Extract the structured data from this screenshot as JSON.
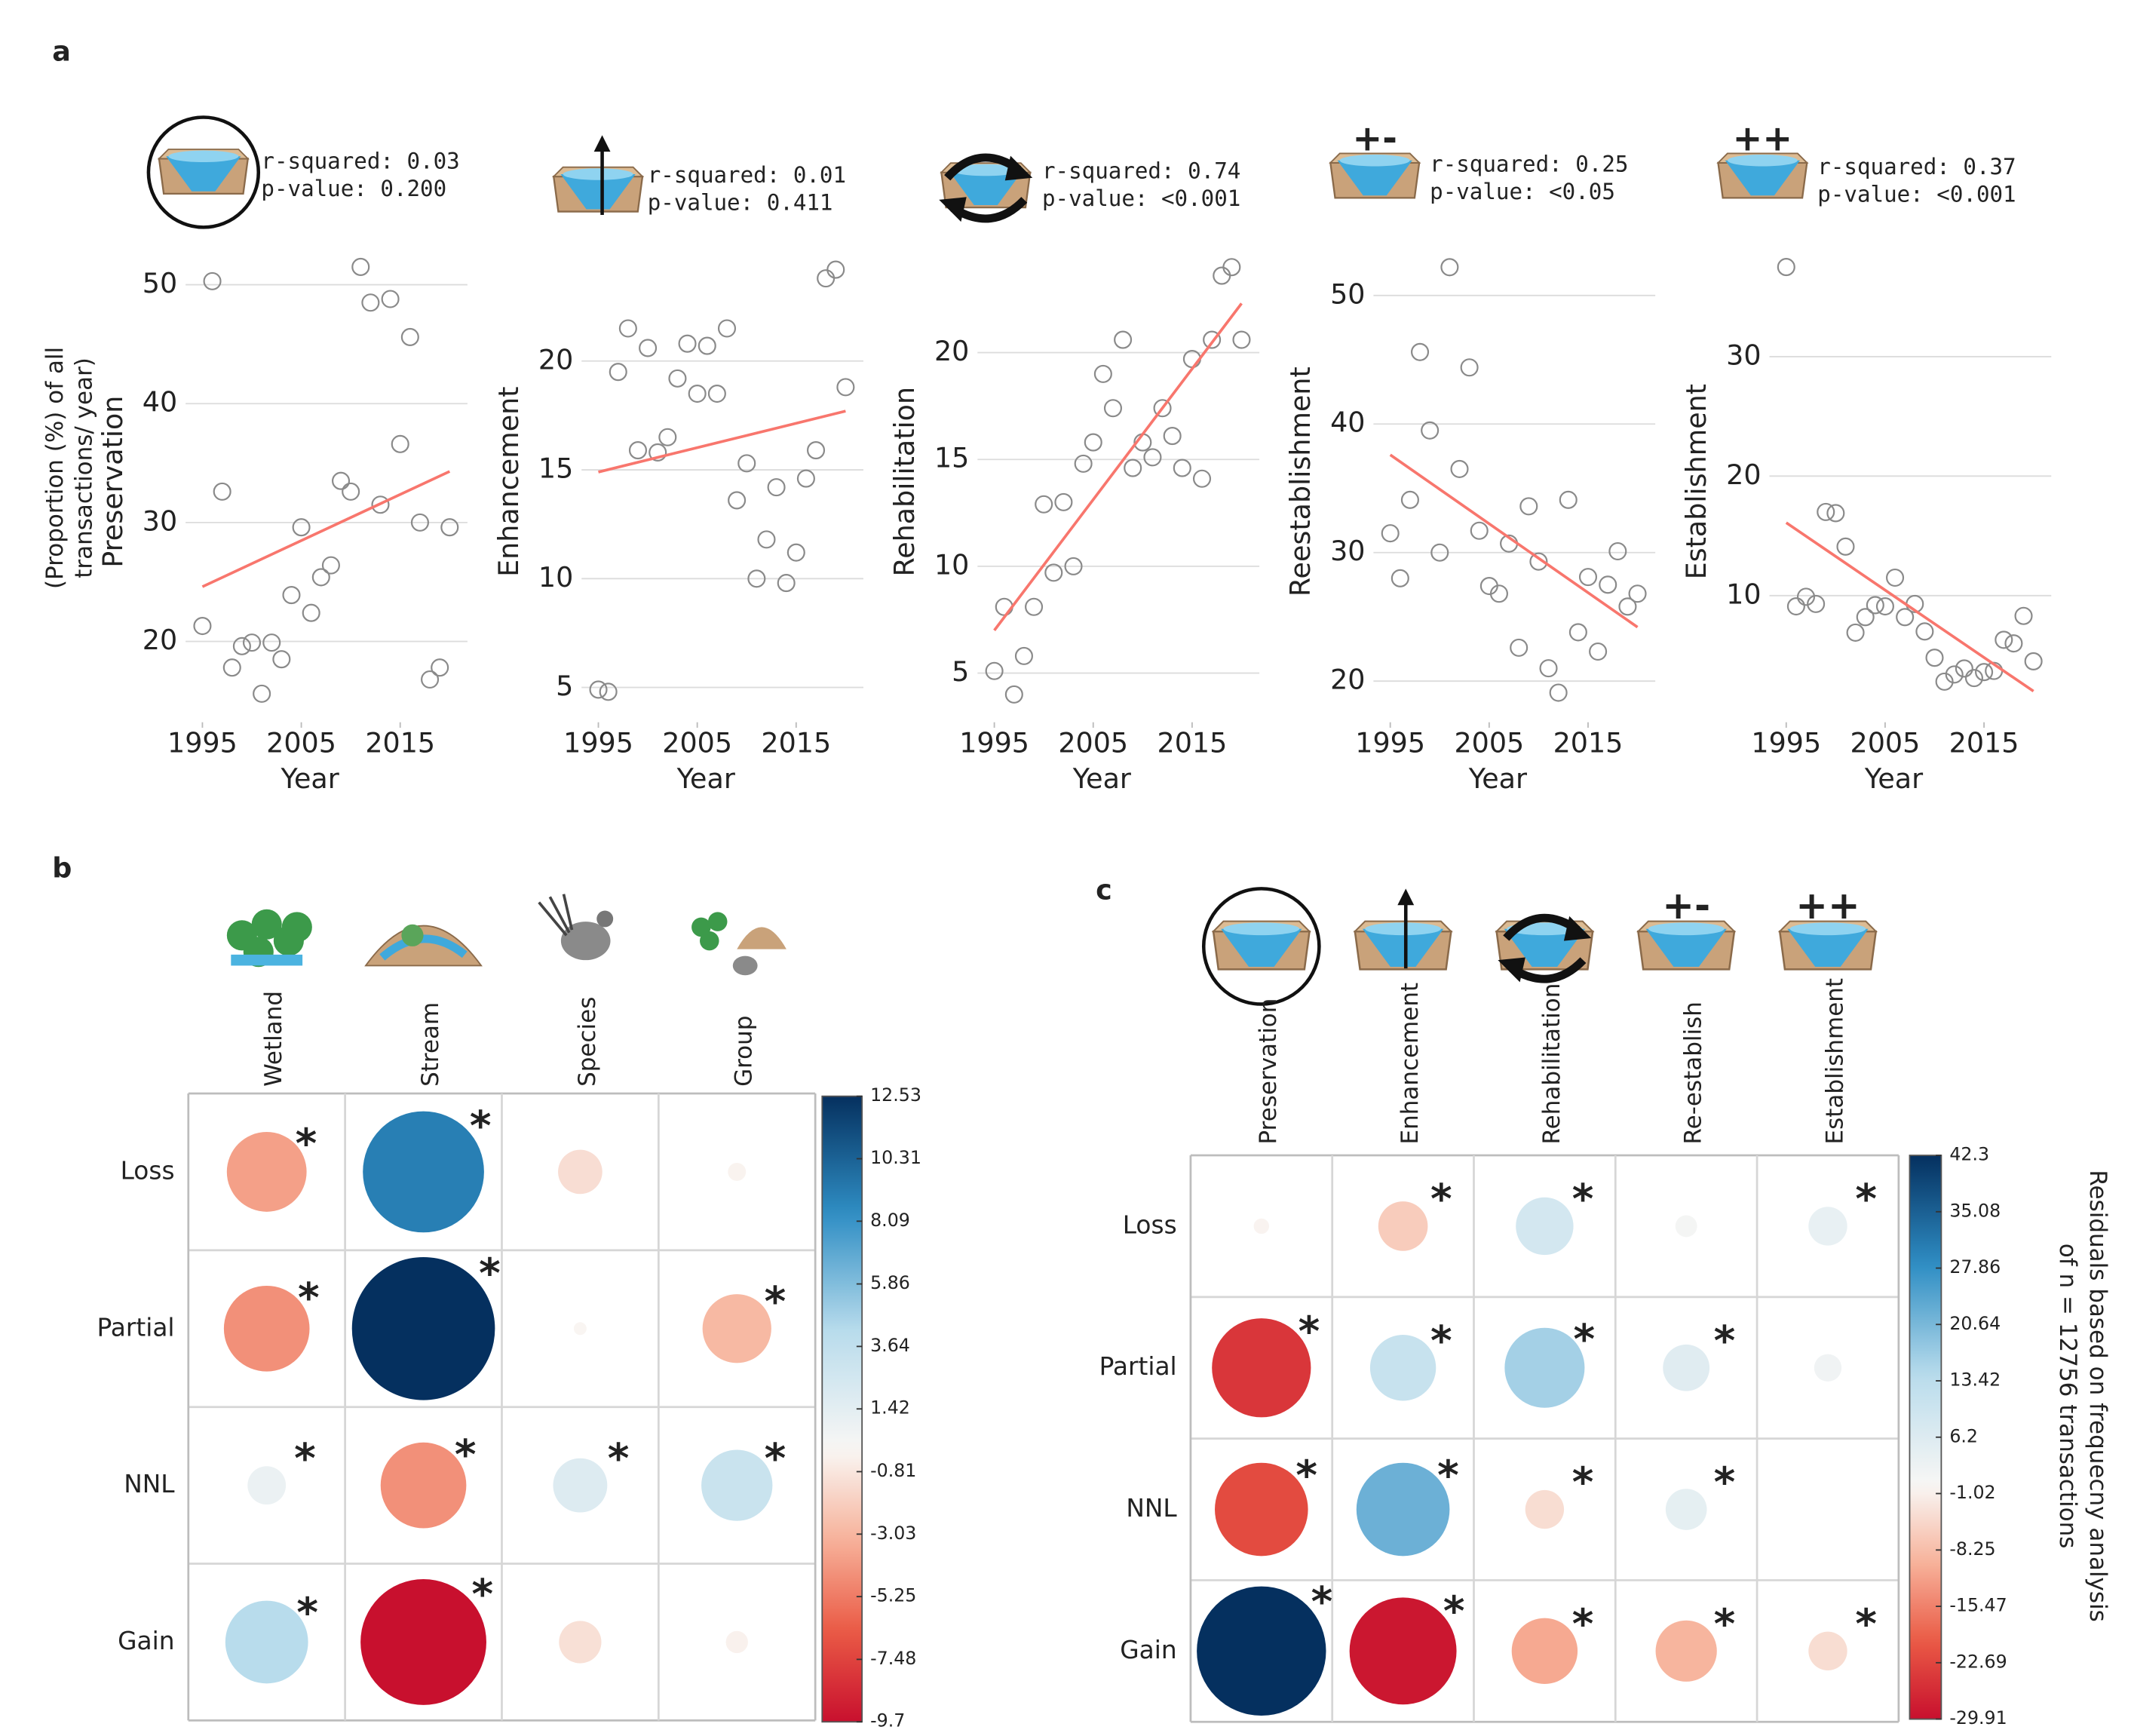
{
  "chart_data": [
    {
      "type": "scatter",
      "panel_label": "a",
      "ylabel": "Preservation",
      "ylabel_note": [
        "(Proportion (%) of all",
        "transactions/ year)"
      ],
      "annotations": [
        "r-squared: 0.03",
        "p-value: 0.200"
      ],
      "xlabel": "Year",
      "x": [
        1995,
        1996,
        1997,
        1998,
        1999,
        2000,
        2001,
        2002,
        2003,
        2004,
        2005,
        2006,
        2007,
        2008,
        2009,
        2010,
        2011,
        2012,
        2013,
        2014,
        2015,
        2016,
        2017,
        2018,
        2019,
        2020
      ],
      "values": [
        21.3,
        50.3,
        32.6,
        17.8,
        19.6,
        19.9,
        15.6,
        19.9,
        18.5,
        23.9,
        29.6,
        22.4,
        25.4,
        26.4,
        33.5,
        32.6,
        51.5,
        48.5,
        31.5,
        48.8,
        36.6,
        45.6,
        30.0,
        16.8,
        17.8,
        29.6
      ],
      "color": "#8a8a8a",
      "trend": {
        "x": [
          1995,
          2020
        ],
        "y": [
          24.6,
          34.3
        ],
        "color": "#f8766d"
      },
      "xlim": [
        1993.3,
        2021.8
      ],
      "ylim": [
        13.2,
        53.1
      ],
      "xticks": [
        1995,
        2005,
        2015
      ],
      "yticks": [
        20,
        30,
        40,
        50
      ],
      "grid": true
    },
    {
      "type": "scatter",
      "ylabel": "Enhancement",
      "annotations": [
        "r-squared: 0.01",
        "p-value: 0.411"
      ],
      "xlabel": "Year",
      "x": [
        1995,
        1996,
        1997,
        1998,
        1999,
        2000,
        2001,
        2002,
        2003,
        2004,
        2005,
        2006,
        2007,
        2008,
        2009,
        2010,
        2011,
        2012,
        2013,
        2014,
        2015,
        2016,
        2017,
        2018,
        2019,
        2020
      ],
      "values": [
        4.9,
        4.8,
        19.5,
        21.5,
        15.9,
        20.6,
        15.8,
        16.5,
        19.2,
        20.8,
        18.5,
        20.7,
        18.5,
        21.5,
        13.6,
        15.3,
        10.0,
        11.8,
        14.2,
        9.8,
        11.2,
        14.6,
        15.9,
        23.8,
        24.2,
        18.8
      ],
      "color": "#8a8a8a",
      "trend": {
        "x": [
          1995,
          2020
        ],
        "y": [
          14.9,
          17.7
        ],
        "color": "#f8766d"
      },
      "xlim": [
        1993.3,
        2021.8
      ],
      "ylim": [
        3.4,
        25.2
      ],
      "xticks": [
        1995,
        2005,
        2015
      ],
      "yticks": [
        5,
        10,
        15,
        20
      ],
      "grid": true
    },
    {
      "type": "scatter",
      "ylabel": "Rehabilitation",
      "annotations": [
        "r-squared: 0.74",
        "p-value: <0.001"
      ],
      "xlabel": "Year",
      "x": [
        1995,
        1996,
        1997,
        1998,
        1999,
        2000,
        2001,
        2002,
        2003,
        2004,
        2005,
        2006,
        2007,
        2008,
        2009,
        2010,
        2011,
        2012,
        2013,
        2014,
        2015,
        2016,
        2017,
        2018,
        2019,
        2020
      ],
      "values": [
        5.1,
        8.1,
        4.0,
        5.8,
        8.1,
        12.9,
        9.7,
        13.0,
        10.0,
        14.8,
        15.8,
        19.0,
        17.4,
        20.6,
        14.6,
        15.8,
        15.1,
        17.4,
        16.1,
        14.6,
        19.7,
        14.1,
        20.6,
        23.6,
        24.0,
        20.6
      ],
      "color": "#8a8a8a",
      "trend": {
        "x": [
          1995,
          2020
        ],
        "y": [
          7.0,
          22.3
        ],
        "color": "#f8766d"
      },
      "xlim": [
        1993.3,
        2021.8
      ],
      "ylim": [
        2.7,
        24.9
      ],
      "xticks": [
        1995,
        2005,
        2015
      ],
      "yticks": [
        5,
        10,
        15,
        20
      ],
      "grid": true
    },
    {
      "type": "scatter",
      "ylabel": "Reestablishment",
      "annotations": [
        "r-squared: 0.25",
        "p-value: <0.05"
      ],
      "icon_label": "+-",
      "xlabel": "Year",
      "x": [
        1995,
        1996,
        1997,
        1998,
        1999,
        2000,
        2001,
        2002,
        2003,
        2004,
        2005,
        2006,
        2007,
        2008,
        2009,
        2010,
        2011,
        2012,
        2013,
        2014,
        2015,
        2016,
        2017,
        2018,
        2019,
        2020
      ],
      "values": [
        31.5,
        28.0,
        34.1,
        45.6,
        39.5,
        30.0,
        52.2,
        36.5,
        44.4,
        31.7,
        27.4,
        26.8,
        30.7,
        22.6,
        33.6,
        29.3,
        21.0,
        19.1,
        34.1,
        23.8,
        28.1,
        22.3,
        27.5,
        30.1,
        25.8,
        26.8
      ],
      "color": "#8a8a8a",
      "trend": {
        "x": [
          1995,
          2020
        ],
        "y": [
          37.6,
          24.2
        ],
        "color": "#f8766d"
      },
      "xlim": [
        1993.3,
        2021.8
      ],
      "ylim": [
        16.8,
        53.7
      ],
      "xticks": [
        1995,
        2005,
        2015
      ],
      "yticks": [
        20,
        30,
        40,
        50
      ],
      "grid": true
    },
    {
      "type": "scatter",
      "ylabel": "Establishment",
      "annotations": [
        "r-squared: 0.37",
        "p-value: <0.001"
      ],
      "icon_label": "++",
      "xlabel": "Year",
      "x": [
        1995,
        1996,
        1997,
        1998,
        1999,
        2000,
        2001,
        2002,
        2003,
        2004,
        2005,
        2006,
        2007,
        2008,
        2009,
        2010,
        2011,
        2012,
        2013,
        2014,
        2015,
        2016,
        2017,
        2018,
        2019,
        2020
      ],
      "values": [
        37.5,
        9.1,
        9.9,
        9.3,
        17.0,
        16.9,
        14.1,
        6.9,
        8.2,
        9.2,
        9.1,
        11.5,
        8.2,
        9.3,
        7.0,
        4.8,
        2.8,
        3.4,
        3.9,
        3.1,
        3.6,
        3.7,
        6.3,
        6.0,
        8.3,
        4.5
      ],
      "color": "#8a8a8a",
      "trend": {
        "x": [
          1995,
          2020
        ],
        "y": [
          16.1,
          2.0
        ],
        "color": "#f8766d"
      },
      "xlim": [
        1993.3,
        2021.8
      ],
      "ylim": [
        -0.6,
        39.1
      ],
      "xticks": [
        1995,
        2005,
        2015
      ],
      "yticks": [
        10,
        20,
        30
      ],
      "grid": true
    },
    {
      "type": "corrplot",
      "panel_label": "b",
      "rows": [
        "Loss",
        "Partial",
        "NNL",
        "Gain"
      ],
      "columns": [
        "Wetland",
        "Stream",
        "Species",
        "Group"
      ],
      "values": [
        [
          -3.9,
          9.0,
          -1.2,
          -0.2
        ],
        [
          -4.5,
          12.53,
          -0.1,
          -2.9
        ],
        [
          0.9,
          -4.5,
          1.8,
          3.1
        ],
        [
          4.2,
          -9.7,
          -1.1,
          -0.3
        ]
      ],
      "significant": [
        [
          true,
          true,
          false,
          false
        ],
        [
          true,
          true,
          false,
          true
        ],
        [
          true,
          true,
          true,
          true
        ],
        [
          true,
          true,
          false,
          false
        ]
      ],
      "significance_label": "*",
      "colorbar_lim": [
        -9.7,
        12.53
      ],
      "colorbar_ticks": [
        12.53,
        10.31,
        8.09,
        5.86,
        3.64,
        1.42,
        -0.81,
        -3.03,
        -5.25,
        -7.48,
        -9.7
      ],
      "colorscale": [
        "#c8102e",
        "#ea5a45",
        "#f7b29a",
        "#f9f7f5",
        "#b9dcec",
        "#2f8ec4",
        "#05305f"
      ]
    },
    {
      "type": "corrplot",
      "panel_label": "c",
      "rows": [
        "Loss",
        "Partial",
        "NNL",
        "Gain"
      ],
      "columns": [
        "Preservation",
        "Enhancement",
        "Rehabilitation",
        "Re-establish",
        "Establishment"
      ],
      "column_icon_labels": [
        null,
        null,
        null,
        "+-",
        "++"
      ],
      "values": [
        [
          -0.6,
          -6.2,
          8.4,
          1.2,
          3.8
        ],
        [
          -24.8,
          11.0,
          16.2,
          5.5,
          1.9
        ],
        [
          -22.0,
          22.0,
          -3.8,
          4.3,
          0
        ],
        [
          42.3,
          -29.0,
          -11.0,
          -9.5,
          -3.8
        ]
      ],
      "significant": [
        [
          false,
          true,
          true,
          false,
          true
        ],
        [
          true,
          true,
          true,
          true,
          false
        ],
        [
          true,
          true,
          true,
          true,
          false
        ],
        [
          true,
          true,
          true,
          true,
          true
        ]
      ],
      "significance_label": "*",
      "colorbar_lim": [
        -29.91,
        42.3
      ],
      "colorbar_ticks": [
        42.3,
        35.08,
        27.86,
        20.64,
        13.42,
        6.2,
        -1.02,
        -8.25,
        -15.47,
        -22.69,
        -29.91
      ],
      "colorbar_label": [
        "Residuals based on frequecny analysis",
        "of n = 12756 transactions"
      ],
      "colorscale": [
        "#c8102e",
        "#ea5a45",
        "#f7b29a",
        "#f9f7f5",
        "#b9dcec",
        "#2f8ec4",
        "#05305f"
      ]
    }
  ]
}
